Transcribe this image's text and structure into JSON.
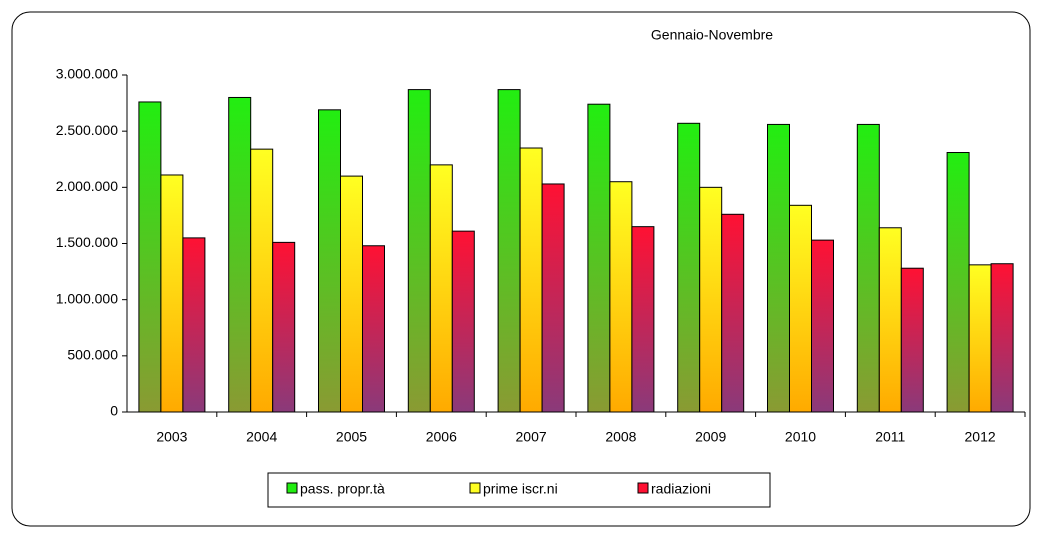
{
  "chart_data": {
    "type": "bar",
    "title": "Gennaio-Novembre",
    "categories": [
      "2003",
      "2004",
      "2005",
      "2006",
      "2007",
      "2008",
      "2009",
      "2010",
      "2011",
      "2012"
    ],
    "series": [
      {
        "name": "pass. propr.tà",
        "color": "#22ee11",
        "values": [
          2760000,
          2800000,
          2690000,
          2870000,
          2870000,
          2740000,
          2570000,
          2560000,
          2560000,
          2310000
        ]
      },
      {
        "name": "prime iscr.ni",
        "color": "#ffff22",
        "values": [
          2110000,
          2340000,
          2100000,
          2200000,
          2350000,
          2050000,
          2000000,
          1840000,
          1640000,
          1310000
        ]
      },
      {
        "name": "radiazioni",
        "color": "#ff1133",
        "values": [
          1550000,
          1510000,
          1480000,
          1610000,
          2030000,
          1650000,
          1760000,
          1530000,
          1280000,
          1320000
        ]
      }
    ],
    "ylim": [
      0,
      3000000
    ],
    "yticks": [
      0,
      {
        "value": 500000,
        "label": "500.000"
      },
      {
        "value": 1000000,
        "label": "1.000.000"
      },
      {
        "value": 1500000,
        "label": "1.500.000"
      },
      {
        "value": 2000000,
        "label": "2.000.000"
      },
      {
        "value": 2500000,
        "label": "2.500.000"
      },
      {
        "value": 3000000,
        "label": "3.000.000"
      }
    ],
    "grid": false
  }
}
